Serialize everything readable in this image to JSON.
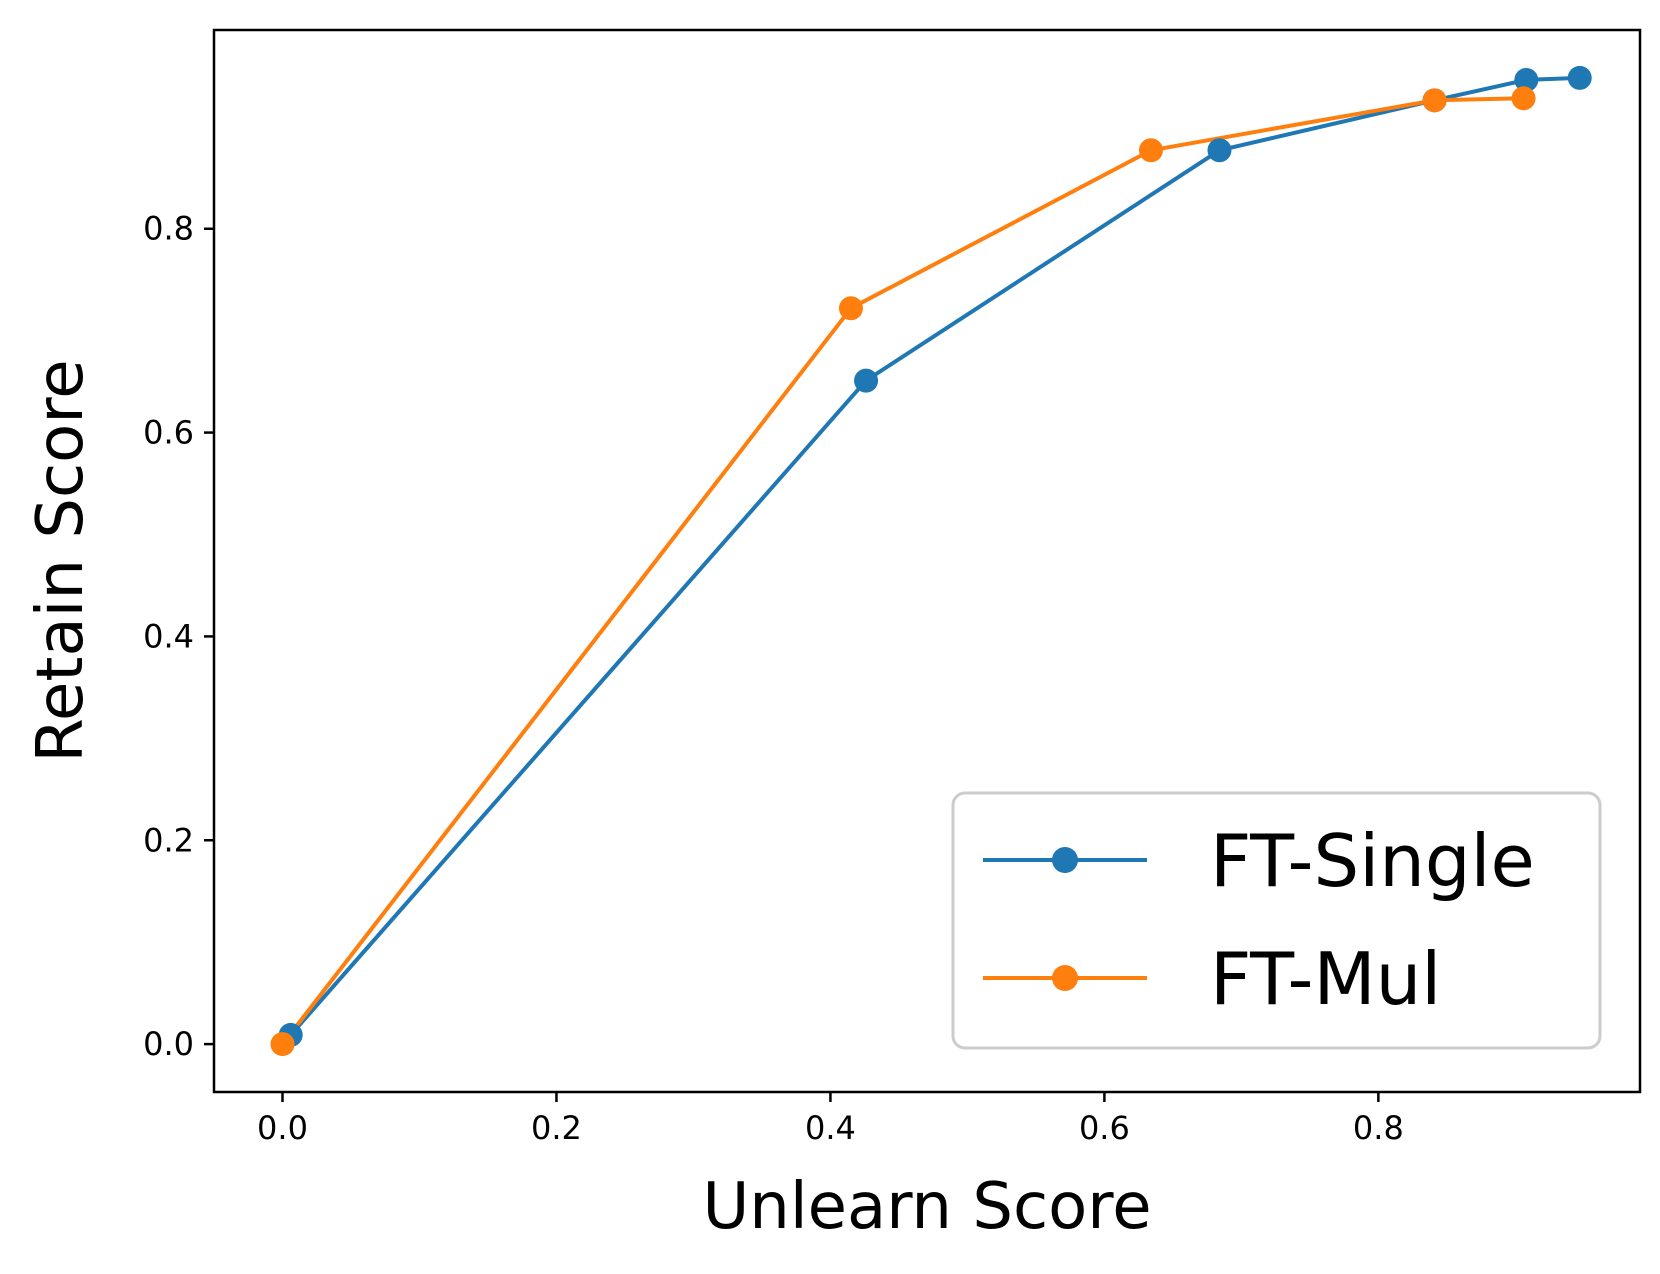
{
  "chart_data": {
    "type": "line",
    "xlabel": "Unlearn Score",
    "ylabel": "Retain Score",
    "xlim": [
      -0.05,
      0.991
    ],
    "ylim": [
      -0.047,
      0.995
    ],
    "xticks": [
      0.0,
      0.2,
      0.4,
      0.6,
      0.8
    ],
    "yticks": [
      0.0,
      0.2,
      0.4,
      0.6,
      0.8
    ],
    "xtick_labels": [
      "0.0",
      "0.2",
      "0.4",
      "0.6",
      "0.8"
    ],
    "ytick_labels": [
      "0.0",
      "0.2",
      "0.4",
      "0.6",
      "0.8"
    ],
    "grid": false,
    "legend_position": "lower-right",
    "series": [
      {
        "name": "FT-Single",
        "color": "#1f77b4",
        "marker": "circle",
        "points": [
          {
            "x": 0.006,
            "y": 0.009
          },
          {
            "x": 0.426,
            "y": 0.651
          },
          {
            "x": 0.684,
            "y": 0.877
          },
          {
            "x": 0.841,
            "y": 0.926
          },
          {
            "x": 0.908,
            "y": 0.946
          },
          {
            "x": 0.947,
            "y": 0.948
          }
        ]
      },
      {
        "name": "FT-Mul",
        "color": "#ff7f0e",
        "marker": "circle",
        "points": [
          {
            "x": 0.0,
            "y": 0.0
          },
          {
            "x": 0.415,
            "y": 0.722
          },
          {
            "x": 0.634,
            "y": 0.877
          },
          {
            "x": 0.841,
            "y": 0.926
          },
          {
            "x": 0.906,
            "y": 0.928
          }
        ]
      }
    ]
  }
}
